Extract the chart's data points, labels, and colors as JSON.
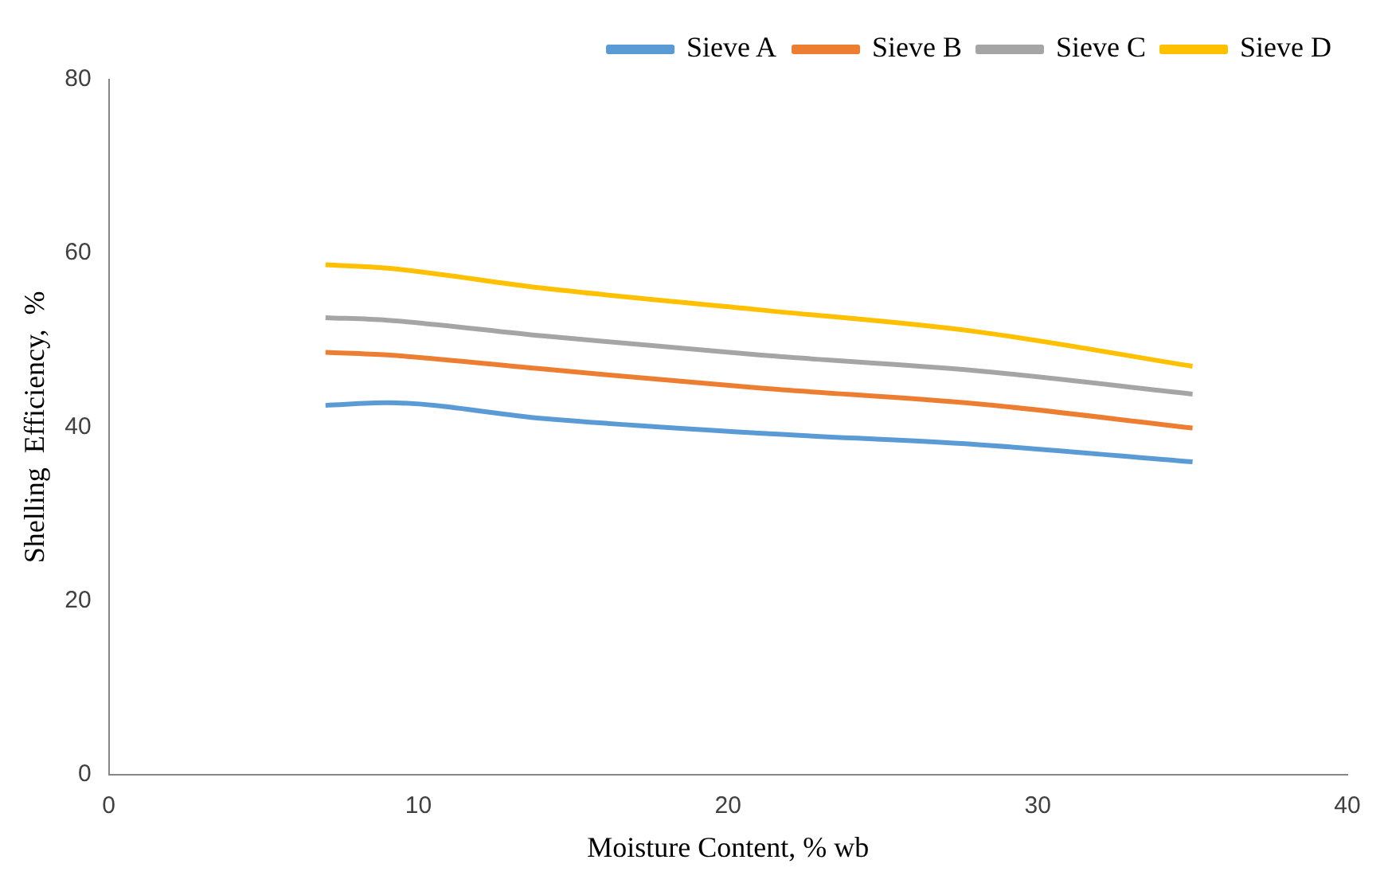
{
  "chart_data": {
    "type": "line",
    "xlabel": "Moisture Content, % wb",
    "ylabel": "Shelling  Efficiency,  %",
    "x": [
      7,
      9,
      14,
      21,
      28,
      35
    ],
    "xlim": [
      0,
      40
    ],
    "xticks": [
      0,
      10,
      20,
      30,
      40
    ],
    "ylim": [
      0,
      80
    ],
    "yticks": [
      0,
      20,
      40,
      60,
      80
    ],
    "grid": false,
    "legend": "top right",
    "marker": "none",
    "series": [
      {
        "name": "Sieve A",
        "color": "#5b9bd5",
        "values": [
          42.5,
          42.8,
          41,
          39.3,
          38,
          36
        ]
      },
      {
        "name": "Sieve B",
        "color": "#ed7d31",
        "values": [
          48.6,
          48.3,
          46.7,
          44.5,
          42.7,
          39.9
        ]
      },
      {
        "name": "Sieve C",
        "color": "#a5a5a5",
        "values": [
          52.6,
          52.3,
          50.5,
          48.3,
          46.5,
          43.8
        ]
      },
      {
        "name": "Sieve D",
        "color": "#ffc000",
        "values": [
          58.7,
          58.3,
          56,
          53.5,
          51,
          47
        ]
      }
    ]
  }
}
